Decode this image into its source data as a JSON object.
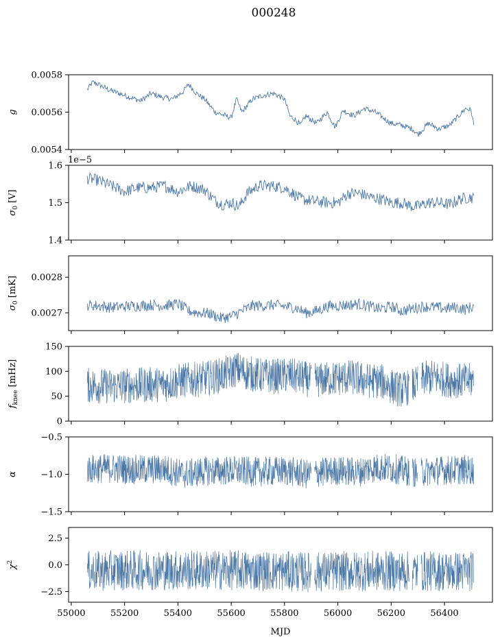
{
  "figure": {
    "title": "000248",
    "xlabel": "MJD",
    "series_color": "#4c78a8"
  },
  "chart_data": [
    {
      "type": "line",
      "ylabel": "g",
      "xlim": [
        54990,
        56580
      ],
      "ylim": [
        0.0054,
        0.0058
      ],
      "xticks": [
        55000,
        55200,
        55400,
        55600,
        55800,
        56000,
        56200,
        56400
      ],
      "yticks": [
        0.0054,
        0.0056,
        0.0058
      ],
      "ytick_labels": [
        "0.0054",
        "0.0056",
        "0.0058"
      ],
      "offset_text": "",
      "band": 1.5e-05,
      "gaps": [],
      "series": [
        {
          "x": [
            55060,
            55080,
            55100,
            55140,
            55180,
            55220,
            55260,
            55300,
            55340,
            55380,
            55420,
            55440,
            55470,
            55500,
            55540,
            55580,
            55600,
            55620,
            55640,
            55680,
            55720,
            55760,
            55800,
            55820,
            55840,
            55860,
            55880,
            55920,
            55960,
            55990,
            56020,
            56060,
            56100,
            56140,
            56160,
            56200,
            56240,
            56280,
            56300,
            56340,
            56380,
            56420,
            56460,
            56480,
            56500,
            56510
          ],
          "y": [
            0.00572,
            0.00576,
            0.00575,
            0.00572,
            0.0057,
            0.00568,
            0.00566,
            0.0057,
            0.00568,
            0.00567,
            0.00571,
            0.00575,
            0.0057,
            0.00567,
            0.0056,
            0.00558,
            0.00557,
            0.00567,
            0.0056,
            0.00567,
            0.00569,
            0.0057,
            0.00567,
            0.00558,
            0.00556,
            0.00553,
            0.00558,
            0.00554,
            0.0056,
            0.00552,
            0.00561,
            0.00558,
            0.00562,
            0.0056,
            0.00558,
            0.00554,
            0.00553,
            0.00551,
            0.00548,
            0.00554,
            0.00551,
            0.00553,
            0.00559,
            0.00562,
            0.00561,
            0.00553
          ]
        }
      ]
    },
    {
      "type": "line",
      "ylabel": "σ0 [V]",
      "ylabel_main": "σ",
      "ylabel_sub": "0",
      "ylabel_tail": " [V]",
      "xlim": [
        54990,
        56580
      ],
      "ylim": [
        1.4,
        1.6
      ],
      "xticks": [
        55000,
        55200,
        55400,
        55600,
        55800,
        56000,
        56200,
        56400
      ],
      "yticks": [
        1.4,
        1.5,
        1.6
      ],
      "ytick_labels": [
        "1.4",
        "1.5",
        "1.6"
      ],
      "offset_text": "1e−5",
      "band": 0.016,
      "gaps": [],
      "series": [
        {
          "x": [
            55060,
            55100,
            55150,
            55200,
            55250,
            55300,
            55350,
            55400,
            55450,
            55500,
            55540,
            55570,
            55600,
            55630,
            55660,
            55700,
            55750,
            55800,
            55840,
            55860,
            55900,
            55960,
            56000,
            56040,
            56080,
            56120,
            56160,
            56200,
            56240,
            56280,
            56300,
            56340,
            56380,
            56420,
            56460,
            56500,
            56510
          ],
          "y": [
            1.565,
            1.56,
            1.545,
            1.53,
            1.54,
            1.54,
            1.545,
            1.53,
            1.545,
            1.535,
            1.505,
            1.495,
            1.5,
            1.49,
            1.525,
            1.545,
            1.545,
            1.54,
            1.52,
            1.51,
            1.505,
            1.5,
            1.5,
            1.525,
            1.525,
            1.515,
            1.51,
            1.5,
            1.5,
            1.49,
            1.49,
            1.5,
            1.5,
            1.495,
            1.51,
            1.515,
            1.51
          ]
        }
      ]
    },
    {
      "type": "line",
      "ylabel": "σ0 [mK]",
      "ylabel_main": "σ",
      "ylabel_sub": "0",
      "ylabel_tail": " [mK]",
      "xlim": [
        54990,
        56580
      ],
      "ylim": [
        0.00265,
        0.00286
      ],
      "xticks": [
        55000,
        55200,
        55400,
        55600,
        55800,
        56000,
        56200,
        56400
      ],
      "yticks": [
        0.0027,
        0.0028
      ],
      "ytick_labels": [
        "0.0027",
        "0.0028"
      ],
      "offset_text": "",
      "band": 1.6e-05,
      "gaps": [],
      "series": [
        {
          "x": [
            55060,
            55100,
            55150,
            55200,
            55250,
            55300,
            55350,
            55400,
            55440,
            55480,
            55520,
            55560,
            55600,
            55640,
            55680,
            55720,
            55760,
            55800,
            55840,
            55880,
            55920,
            55960,
            56000,
            56040,
            56080,
            56120,
            56160,
            56200,
            56240,
            56280,
            56320,
            56360,
            56400,
            56440,
            56480,
            56510
          ],
          "y": [
            0.002722,
            0.00272,
            0.002715,
            0.002718,
            0.00272,
            0.002722,
            0.00272,
            0.002725,
            0.002705,
            0.0027,
            0.002698,
            0.002685,
            0.00269,
            0.002705,
            0.00272,
            0.00272,
            0.002722,
            0.002718,
            0.002715,
            0.0027,
            0.002705,
            0.002718,
            0.00272,
            0.002722,
            0.002725,
            0.002718,
            0.00271,
            0.002718,
            0.002705,
            0.002712,
            0.002718,
            0.002716,
            0.002712,
            0.002715,
            0.00271,
            0.002718
          ]
        }
      ]
    },
    {
      "type": "line",
      "ylabel": "fknee [mHz]",
      "ylabel_main": "f",
      "ylabel_sub": "knee",
      "ylabel_tail": " [mHz]",
      "xlim": [
        54990,
        56580
      ],
      "ylim": [
        0,
        150
      ],
      "xticks": [
        55000,
        55200,
        55400,
        55600,
        55800,
        56000,
        56200,
        56400
      ],
      "yticks": [
        0,
        50,
        100,
        150
      ],
      "ytick_labels": [
        "0",
        "50",
        "100",
        "150"
      ],
      "offset_text": "",
      "band": 36,
      "gaps": [
        [
          55900,
          55912
        ],
        [
          56268,
          56278
        ],
        [
          56300,
          56312
        ]
      ],
      "series": [
        {
          "x": [
            55060,
            55150,
            55250,
            55350,
            55420,
            55500,
            55560,
            55600,
            55620,
            55650,
            55700,
            55760,
            55820,
            55880,
            55900,
            55920,
            55980,
            56050,
            56100,
            56160,
            56200,
            56240,
            56270,
            56290,
            56320,
            56360,
            56420,
            56480,
            56510
          ],
          "y": [
            72,
            70,
            72,
            74,
            82,
            85,
            92,
            98,
            105,
            98,
            92,
            90,
            92,
            85,
            80,
            82,
            85,
            88,
            82,
            80,
            70,
            62,
            70,
            72,
            85,
            88,
            82,
            80,
            82
          ]
        }
      ]
    },
    {
      "type": "line",
      "ylabel": "α",
      "xlim": [
        54990,
        56580
      ],
      "ylim": [
        -1.5,
        -0.5
      ],
      "xticks": [
        55000,
        55200,
        55400,
        55600,
        55800,
        56000,
        56200,
        56400
      ],
      "yticks": [
        -1.5,
        -1.0,
        -0.5
      ],
      "ytick_labels": [
        "−1.5",
        "−1.0",
        "−0.5"
      ],
      "offset_text": "",
      "band": 0.2,
      "gaps": [
        [
          55900,
          55912
        ],
        [
          56268,
          56278
        ],
        [
          56300,
          56312
        ]
      ],
      "series": [
        {
          "x": [
            55060,
            55150,
            55250,
            55350,
            55420,
            55500,
            55600,
            55700,
            55800,
            55880,
            55920,
            56000,
            56080,
            56120,
            56160,
            56200,
            56260,
            56300,
            56360,
            56440,
            56510
          ],
          "y": [
            -0.93,
            -0.92,
            -0.94,
            -0.93,
            -1.0,
            -0.96,
            -0.95,
            -0.97,
            -0.95,
            -1.0,
            -0.98,
            -0.95,
            -0.97,
            -0.92,
            -0.91,
            -0.92,
            -0.96,
            -0.98,
            -0.95,
            -0.94,
            -0.94
          ]
        }
      ]
    },
    {
      "type": "line",
      "ylabel": "χ2",
      "ylabel_main": "χ",
      "ylabel_sup": "2",
      "xlim": [
        54990,
        56580
      ],
      "ylim": [
        -3.5,
        3.5
      ],
      "xticks": [
        55000,
        55200,
        55400,
        55600,
        55800,
        56000,
        56200,
        56400
      ],
      "xtick_labels": [
        "55000",
        "55200",
        "55400",
        "55600",
        "55800",
        "56000",
        "56200",
        "56400"
      ],
      "yticks": [
        -2.5,
        0.0,
        2.5
      ],
      "ytick_labels": [
        "−2.5",
        "0.0",
        "2.5"
      ],
      "offset_text": "",
      "band": 1.9,
      "gaps": [
        [
          55900,
          55912
        ],
        [
          56268,
          56278
        ],
        [
          56300,
          56312
        ]
      ],
      "series": [
        {
          "x": [
            55060,
            55200,
            55400,
            55600,
            55800,
            55900,
            56000,
            56200,
            56400,
            56510
          ],
          "y": [
            -0.6,
            -0.5,
            -0.5,
            -0.5,
            -0.6,
            -0.7,
            -0.6,
            -0.6,
            -0.6,
            -0.6
          ]
        }
      ]
    }
  ]
}
